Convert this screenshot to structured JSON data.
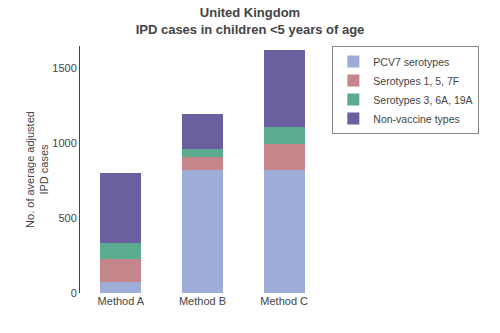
{
  "chart_data": {
    "type": "bar",
    "stacked": true,
    "title": "United Kingdom\nIPD cases in children <5 years of age",
    "ylabel": "No. of average adjusted\nIPD cases",
    "categories": [
      "Method A",
      "Method B",
      "Method C"
    ],
    "series": [
      {
        "name": "PCV7 serotypes",
        "color": "#9dadd8",
        "values": [
          75,
          820,
          820
        ]
      },
      {
        "name": "Serotypes 1, 5, 7F",
        "color": "#c4868a",
        "values": [
          150,
          90,
          175
        ]
      },
      {
        "name": "Serotypes 3, 6A, 19A",
        "color": "#5aab8f",
        "values": [
          110,
          55,
          115
        ]
      },
      {
        "name": "Non-vaccine types",
        "color": "#6b5fa0",
        "values": [
          465,
          230,
          510
        ]
      }
    ],
    "ylim": [
      0,
      1650
    ],
    "yticks": [
      0,
      500,
      1000,
      1500
    ],
    "grid": false,
    "legend": "upper right"
  }
}
